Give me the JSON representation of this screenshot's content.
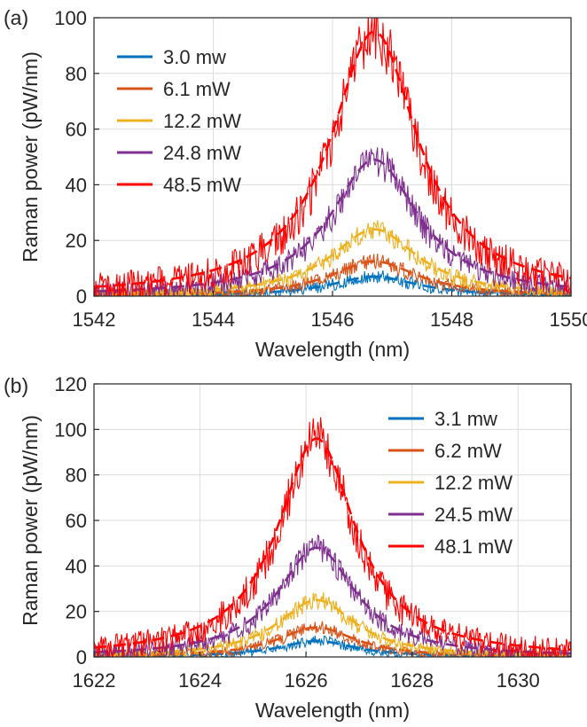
{
  "chart_data": [
    {
      "panel_label": "(a)",
      "type": "line",
      "xlabel": "Wavelength (nm)",
      "ylabel": "Raman power (pW/nm)",
      "xlim": [
        1542,
        1550
      ],
      "ylim": [
        0,
        100
      ],
      "xticks": [
        "1542",
        "1544",
        "1546",
        "1548",
        "1550"
      ],
      "yticks": [
        "0",
        "20",
        "40",
        "60",
        "80",
        "100"
      ],
      "grid": true,
      "legend": "top-left",
      "series": [
        {
          "name": "3.0 mw",
          "color": "#0072BD",
          "peak": 7,
          "center": 1546.7,
          "width": 0.85
        },
        {
          "name": "6.1 mW",
          "color": "#D95319",
          "peak": 12.5,
          "center": 1546.7,
          "width": 0.85
        },
        {
          "name": "12.2 mW",
          "color": "#EDB120",
          "peak": 24,
          "center": 1546.7,
          "width": 0.85
        },
        {
          "name": "24.8 mW",
          "color": "#7E2F8E",
          "peak": 49,
          "center": 1546.7,
          "width": 0.85
        },
        {
          "name": "48.5 mW",
          "color": "#FF0000",
          "peak": 95,
          "center": 1546.7,
          "width": 0.85
        }
      ]
    },
    {
      "panel_label": "(b)",
      "type": "line",
      "xlabel": "Wavelength (nm)",
      "ylabel": "Raman power (pW/nm)",
      "xlim": [
        1622,
        1631
      ],
      "ylim": [
        0,
        120
      ],
      "xticks": [
        "1622",
        "1624",
        "1626",
        "1628",
        "1630"
      ],
      "yticks": [
        "0",
        "20",
        "40",
        "60",
        "80",
        "100",
        "120"
      ],
      "grid": true,
      "legend": "top-right",
      "series": [
        {
          "name": "3.1 mw",
          "color": "#0072BD",
          "peak": 7,
          "center": 1626.2,
          "width": 0.85
        },
        {
          "name": "6.2 mW",
          "color": "#D95319",
          "peak": 13,
          "center": 1626.2,
          "width": 0.85
        },
        {
          "name": "12.2 mW",
          "color": "#EDB120",
          "peak": 25,
          "center": 1626.2,
          "width": 0.85
        },
        {
          "name": "24.5 mW",
          "color": "#7E2F8E",
          "peak": 48,
          "center": 1626.2,
          "width": 0.85
        },
        {
          "name": "48.1 mW",
          "color": "#FF0000",
          "peak": 96,
          "center": 1626.2,
          "width": 0.85
        }
      ]
    }
  ]
}
